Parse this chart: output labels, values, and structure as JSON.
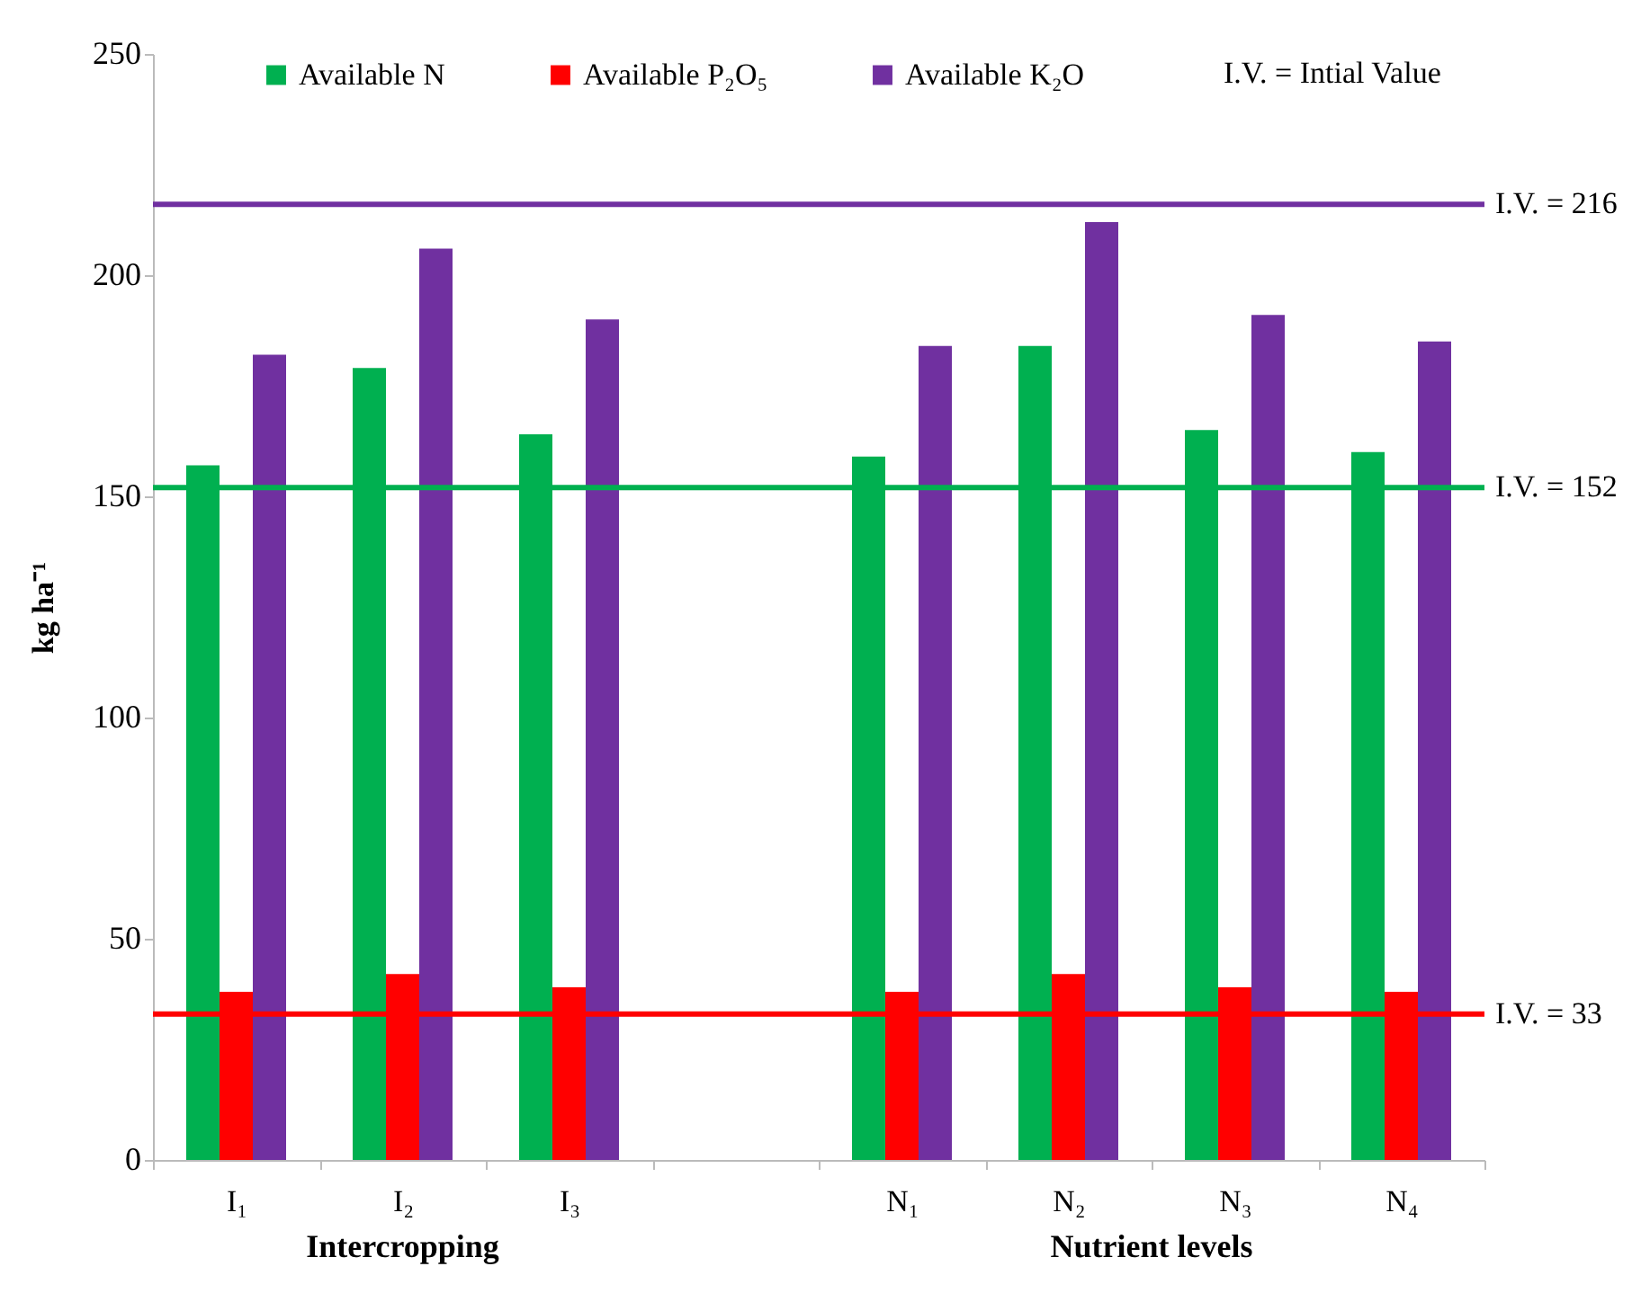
{
  "chart_data": {
    "type": "bar",
    "categories": [
      "I₁",
      "I₂",
      "I₃",
      null,
      "N₁",
      "N₂",
      "N₃",
      "N₄"
    ],
    "series": [
      {
        "name": "Available N",
        "color": "#00b050",
        "values": [
          157,
          179,
          164,
          null,
          159,
          184,
          165,
          160
        ]
      },
      {
        "name": "Available P₂O₅",
        "color": "#ff0000",
        "values": [
          38,
          42,
          39,
          null,
          38,
          42,
          39,
          38
        ]
      },
      {
        "name": "Available K₂O",
        "color": "#7030a0",
        "values": [
          182,
          206,
          190,
          null,
          184,
          212,
          191,
          185
        ]
      }
    ],
    "ylabel": "kg ha⁻¹",
    "ylim": [
      0,
      250
    ],
    "yticks": [
      0,
      50,
      100,
      150,
      200,
      250
    ],
    "ref_lines": [
      {
        "axis": "y",
        "value": 216,
        "label": "I.V. = 216",
        "color": "#7030a0"
      },
      {
        "axis": "y",
        "value": 152,
        "label": "I.V. = 152",
        "color": "#00b050"
      },
      {
        "axis": "y",
        "value": 33,
        "label": "I.V. = 33",
        "color": "#ff0000"
      }
    ],
    "annotations": [
      "I.V. = Intial Value",
      "Intercropping",
      "Nutrient levels"
    ],
    "legend": "top",
    "grid": false
  }
}
